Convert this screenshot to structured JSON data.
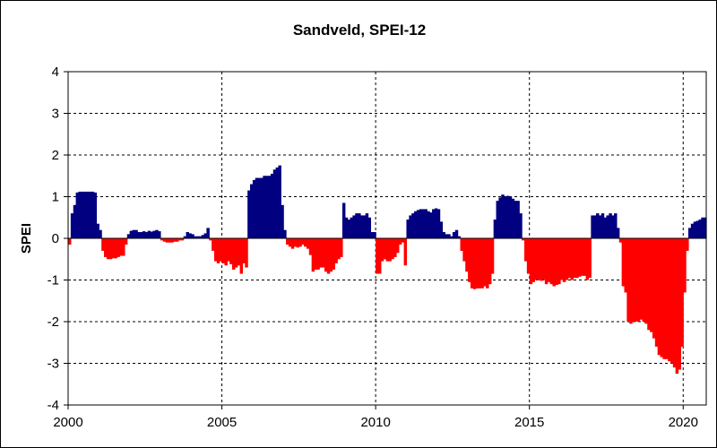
{
  "chart_data": {
    "type": "bar",
    "title": "Sandveld, SPEI-12",
    "xlabel": "",
    "ylabel": "SPEI",
    "xlim": [
      2000,
      2020.75
    ],
    "ylim": [
      -4,
      4
    ],
    "x_ticks": [
      "2000",
      "2005",
      "2010",
      "2015",
      "2020"
    ],
    "y_ticks": [
      "4",
      "3",
      "2",
      "1",
      "0",
      "-1",
      "-2",
      "-3",
      "-4"
    ],
    "grid": true,
    "legend": "none",
    "colors": {
      "positive": "#000080",
      "negative": "#ff0000",
      "plot_background": "#ffffff",
      "grid": "#000000"
    },
    "x_start": 2000.0,
    "x_step": 0.0833333,
    "values": [
      -0.15,
      0.6,
      0.8,
      1.1,
      1.12,
      1.12,
      1.12,
      1.12,
      1.12,
      1.12,
      1.1,
      0.35,
      0.2,
      -0.3,
      -0.45,
      -0.5,
      -0.5,
      -0.48,
      -0.48,
      -0.45,
      -0.42,
      -0.42,
      -0.15,
      0.1,
      0.18,
      0.2,
      0.2,
      0.15,
      0.15,
      0.17,
      0.15,
      0.18,
      0.16,
      0.18,
      0.2,
      0.17,
      -0.05,
      -0.08,
      -0.1,
      -0.1,
      -0.1,
      -0.08,
      -0.08,
      -0.05,
      -0.05,
      0.05,
      0.15,
      0.12,
      0.1,
      0.05,
      0.05,
      0.05,
      0.08,
      0.12,
      0.25,
      -0.05,
      -0.3,
      -0.55,
      -0.6,
      -0.55,
      -0.6,
      -0.65,
      -0.55,
      -0.62,
      -0.75,
      -0.7,
      -0.65,
      -0.85,
      -0.6,
      -0.7,
      1.15,
      1.3,
      1.4,
      1.45,
      1.45,
      1.45,
      1.5,
      1.5,
      1.5,
      1.55,
      1.65,
      1.7,
      1.75,
      0.8,
      0.2,
      -0.15,
      -0.2,
      -0.25,
      -0.2,
      -0.22,
      -0.2,
      -0.15,
      -0.2,
      -0.25,
      -0.4,
      -0.8,
      -0.75,
      -0.75,
      -0.7,
      -0.7,
      -0.8,
      -0.85,
      -0.8,
      -0.75,
      -0.6,
      -0.5,
      -0.45,
      0.85,
      0.5,
      0.45,
      0.5,
      0.55,
      0.6,
      0.6,
      0.55,
      0.55,
      0.6,
      0.5,
      0.15,
      0.15,
      -0.85,
      -0.85,
      -0.55,
      -0.5,
      -0.55,
      -0.55,
      -0.5,
      -0.45,
      -0.35,
      -0.15,
      -0.1,
      -0.65,
      0.45,
      0.55,
      0.6,
      0.65,
      0.68,
      0.7,
      0.7,
      0.7,
      0.65,
      0.62,
      0.7,
      0.72,
      0.7,
      0.4,
      0.15,
      0.1,
      0.1,
      0.05,
      0.15,
      0.2,
      0.05,
      -0.3,
      -0.55,
      -0.8,
      -1.05,
      -1.2,
      -1.22,
      -1.2,
      -1.2,
      -1.2,
      -1.15,
      -1.2,
      -1.1,
      -0.85,
      0.45,
      0.9,
      0.98,
      1.05,
      1.0,
      1.02,
      1.0,
      0.95,
      0.9,
      0.9,
      0.6,
      -0.05,
      -0.55,
      -0.85,
      -1.1,
      -1.05,
      -1.0,
      -1.0,
      -1.02,
      -1.0,
      -1.1,
      -1.05,
      -1.1,
      -1.15,
      -1.12,
      -1.1,
      -1.0,
      -1.05,
      -1.0,
      -0.95,
      -1.0,
      -0.95,
      -0.95,
      -0.92,
      -0.9,
      -0.9,
      -1.0,
      -0.95,
      0.55,
      0.55,
      0.6,
      0.55,
      0.6,
      0.5,
      0.55,
      0.6,
      0.55,
      0.6,
      0.25,
      -0.1,
      -1.15,
      -1.3,
      -2.0,
      -2.05,
      -2.0,
      -2.0,
      -2.0,
      -1.95,
      -2.0,
      -2.05,
      -2.2,
      -2.25,
      -2.4,
      -2.6,
      -2.8,
      -2.85,
      -2.9,
      -2.9,
      -2.95,
      -3.0,
      -3.1,
      -3.25,
      -3.15,
      -2.6,
      -1.3,
      -0.3,
      0.25,
      0.35,
      0.4,
      0.42,
      0.45,
      0.5,
      0.5
    ]
  }
}
